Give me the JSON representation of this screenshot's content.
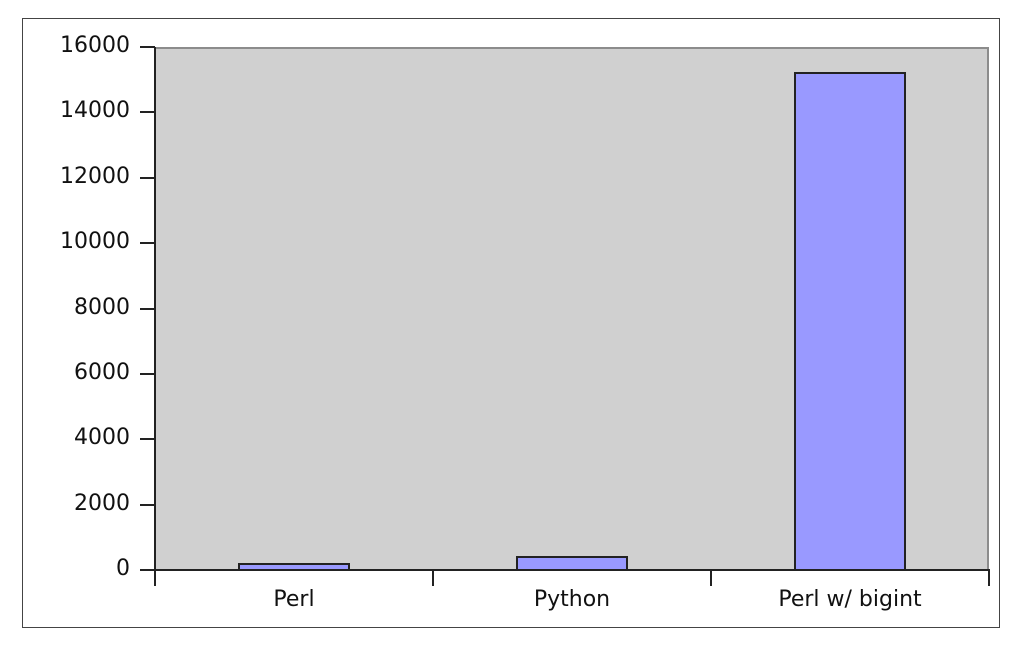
{
  "chart_data": {
    "type": "bar",
    "title": "",
    "xlabel": "",
    "ylabel": "",
    "categories": [
      "Perl",
      "Python",
      "Perl w/ bigint"
    ],
    "values": [
      220,
      420,
      15250
    ],
    "ylim": [
      0,
      16000
    ],
    "yticks": [
      "0",
      "2000",
      "4000",
      "6000",
      "8000",
      "10000",
      "12000",
      "14000",
      "16000"
    ],
    "grid": false,
    "legend": null,
    "colors": {
      "bar": "#9999ff",
      "plot_background": "#d0d0d0",
      "frame": "#444444"
    }
  }
}
